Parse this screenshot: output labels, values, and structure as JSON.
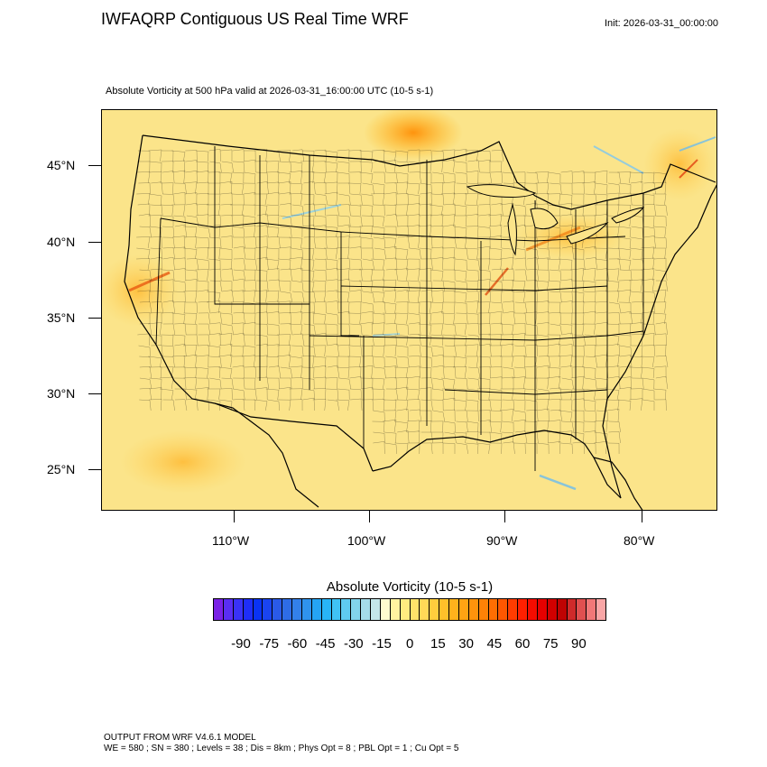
{
  "header": {
    "title": "IWFAQRP Contiguous US Real Time WRF",
    "init": "Init: 2026-03-31_00:00:00",
    "subtitle": "Absolute Vorticity at 500 hPa valid at 2026-03-31_16:00:00 UTC   (10-5 s-1)"
  },
  "map": {
    "lat_labels": [
      "45°N",
      "40°N",
      "35°N",
      "30°N",
      "25°N"
    ],
    "lon_labels": [
      "110°W",
      "100°W",
      "90°W",
      "80°W"
    ],
    "background_color": "#fbe48a",
    "land_outline_color": "#000000"
  },
  "colorbar": {
    "title": "Absolute Vorticity  (10-5 s-1)",
    "labels": [
      "-90",
      "-75",
      "-60",
      "-45",
      "-30",
      "-15",
      "0",
      "15",
      "30",
      "45",
      "60",
      "75",
      "90"
    ],
    "colors": [
      "#7a22e6",
      "#5a2ef2",
      "#3a32f6",
      "#1f2ef8",
      "#0a33f4",
      "#1a44f0",
      "#2a5ae8",
      "#2e6ce6",
      "#3380ea",
      "#2f93ee",
      "#25a4f4",
      "#28b4f6",
      "#40c2f4",
      "#5fcbf0",
      "#82d4ec",
      "#a5dcea",
      "#c4e6ea",
      "#fffbd0",
      "#fff3a0",
      "#ffec80",
      "#ffe36a",
      "#ffd957",
      "#ffcd3d",
      "#ffc02a",
      "#ffb21c",
      "#ffa313",
      "#ff930c",
      "#ff8206",
      "#ff6e02",
      "#ff5700",
      "#ff3c00",
      "#ff2000",
      "#f50c00",
      "#e60000",
      "#d10000",
      "#be0303",
      "#cf2a2a",
      "#e05050",
      "#f17878",
      "#f9a6a6"
    ]
  },
  "footer": {
    "line1": "OUTPUT FROM WRF V4.6.1 MODEL",
    "line2": "WE = 580 ; SN = 380 ; Levels = 38 ; Dis = 8km ; Phys Opt = 8 ; PBL Opt = 1 ; Cu Opt = 5"
  }
}
